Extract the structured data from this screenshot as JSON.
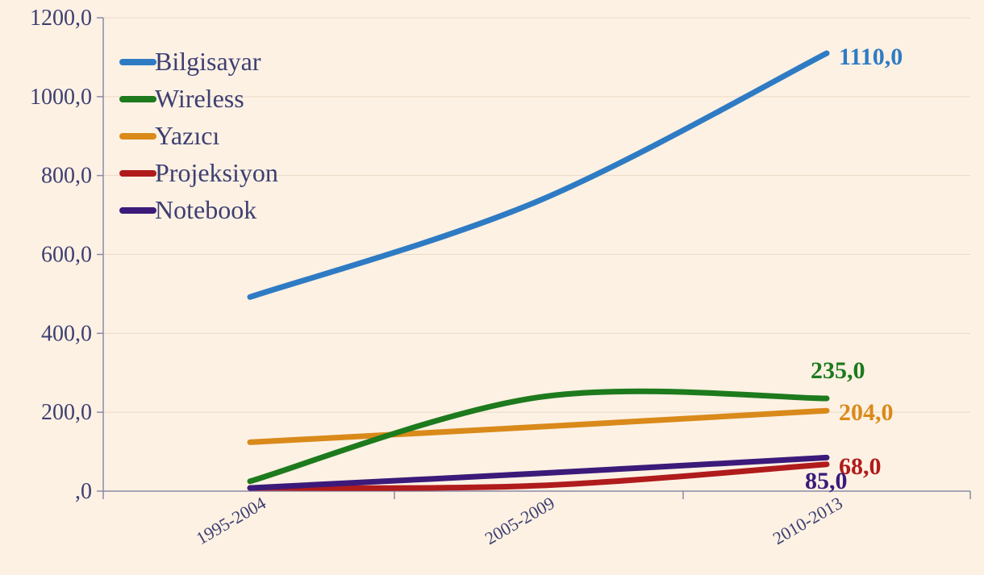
{
  "chart_data": {
    "type": "line",
    "categories": [
      "1995-2004",
      "2005-2009",
      "2010-2013"
    ],
    "ylim": [
      0,
      1200
    ],
    "yticks": [
      {
        "value": 0,
        "label": ",0"
      },
      {
        "value": 200,
        "label": "200,0"
      },
      {
        "value": 400,
        "label": "400,0"
      },
      {
        "value": 600,
        "label": "600,0"
      },
      {
        "value": 800,
        "label": "800,0"
      },
      {
        "value": 1000,
        "label": "1000,0"
      },
      {
        "value": 1200,
        "label": "1200,0"
      }
    ],
    "grid": true,
    "legend_position": "top-left",
    "series": [
      {
        "name": "Bilgisayar",
        "color": "#2e7bc4",
        "values": [
          492,
          736,
          1110
        ],
        "end_label": "1110,0",
        "label_color": "#2e7bc4"
      },
      {
        "name": "Wireless",
        "color": "#1d7a1d",
        "values": [
          25,
          238,
          235
        ],
        "end_label": "235,0",
        "label_color": "#1d7a1d"
      },
      {
        "name": "Yazıcı",
        "color": "#d98a1a",
        "values": [
          124,
          163,
          204
        ],
        "end_label": "204,0",
        "label_color": "#d98a1a"
      },
      {
        "name": "Projeksiyon",
        "color": "#b01b1b",
        "values": [
          8,
          14,
          68
        ],
        "end_label": "68,0",
        "label_color": "#b01b1b"
      },
      {
        "name": "Notebook",
        "color": "#3b1a7a",
        "values": [
          8,
          45,
          85
        ],
        "end_label": "85,0",
        "label_color": "#3b1a7a"
      }
    ]
  }
}
